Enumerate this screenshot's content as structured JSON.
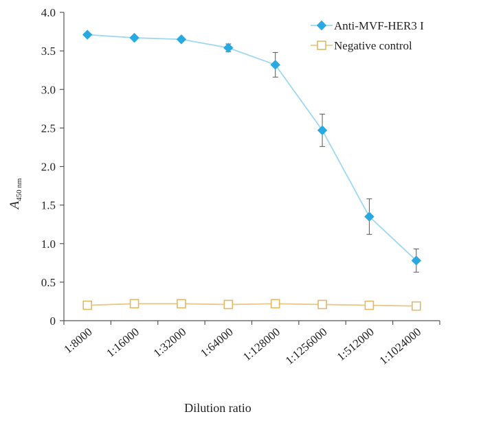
{
  "chart_data": {
    "type": "line",
    "categories": [
      "1:8000",
      "1:16000",
      "1:32000",
      "1:64000",
      "1:128000",
      "1:1256000",
      "1:512000",
      "1:1024000"
    ],
    "xlabel": "Dilution ratio",
    "ylabel_main": "A",
    "ylabel_sub": "450 nm",
    "ylim": [
      0,
      4.0
    ],
    "yticks": [
      "0",
      "0.5",
      "1.0",
      "1.5",
      "2.0",
      "2.5",
      "3.0",
      "3.5",
      "4.0"
    ],
    "grid": false,
    "legend_position": "top-right",
    "series": [
      {
        "name": "Anti-MVF-HER3 I",
        "color": "#29a9e1",
        "line_color": "#9ed8ee",
        "marker": "diamond",
        "values": [
          3.71,
          3.67,
          3.65,
          3.54,
          3.32,
          2.47,
          1.35,
          0.78
        ],
        "errors": [
          0,
          0,
          0,
          0.05,
          0.16,
          0.21,
          0.23,
          0.15
        ]
      },
      {
        "name": "Negative control",
        "color": "#e2b865",
        "line_color": "#e8c98a",
        "marker": "square-open",
        "values": [
          0.2,
          0.22,
          0.22,
          0.21,
          0.22,
          0.21,
          0.2,
          0.19
        ],
        "errors": [
          0,
          0,
          0,
          0,
          0,
          0,
          0,
          0
        ]
      }
    ]
  }
}
